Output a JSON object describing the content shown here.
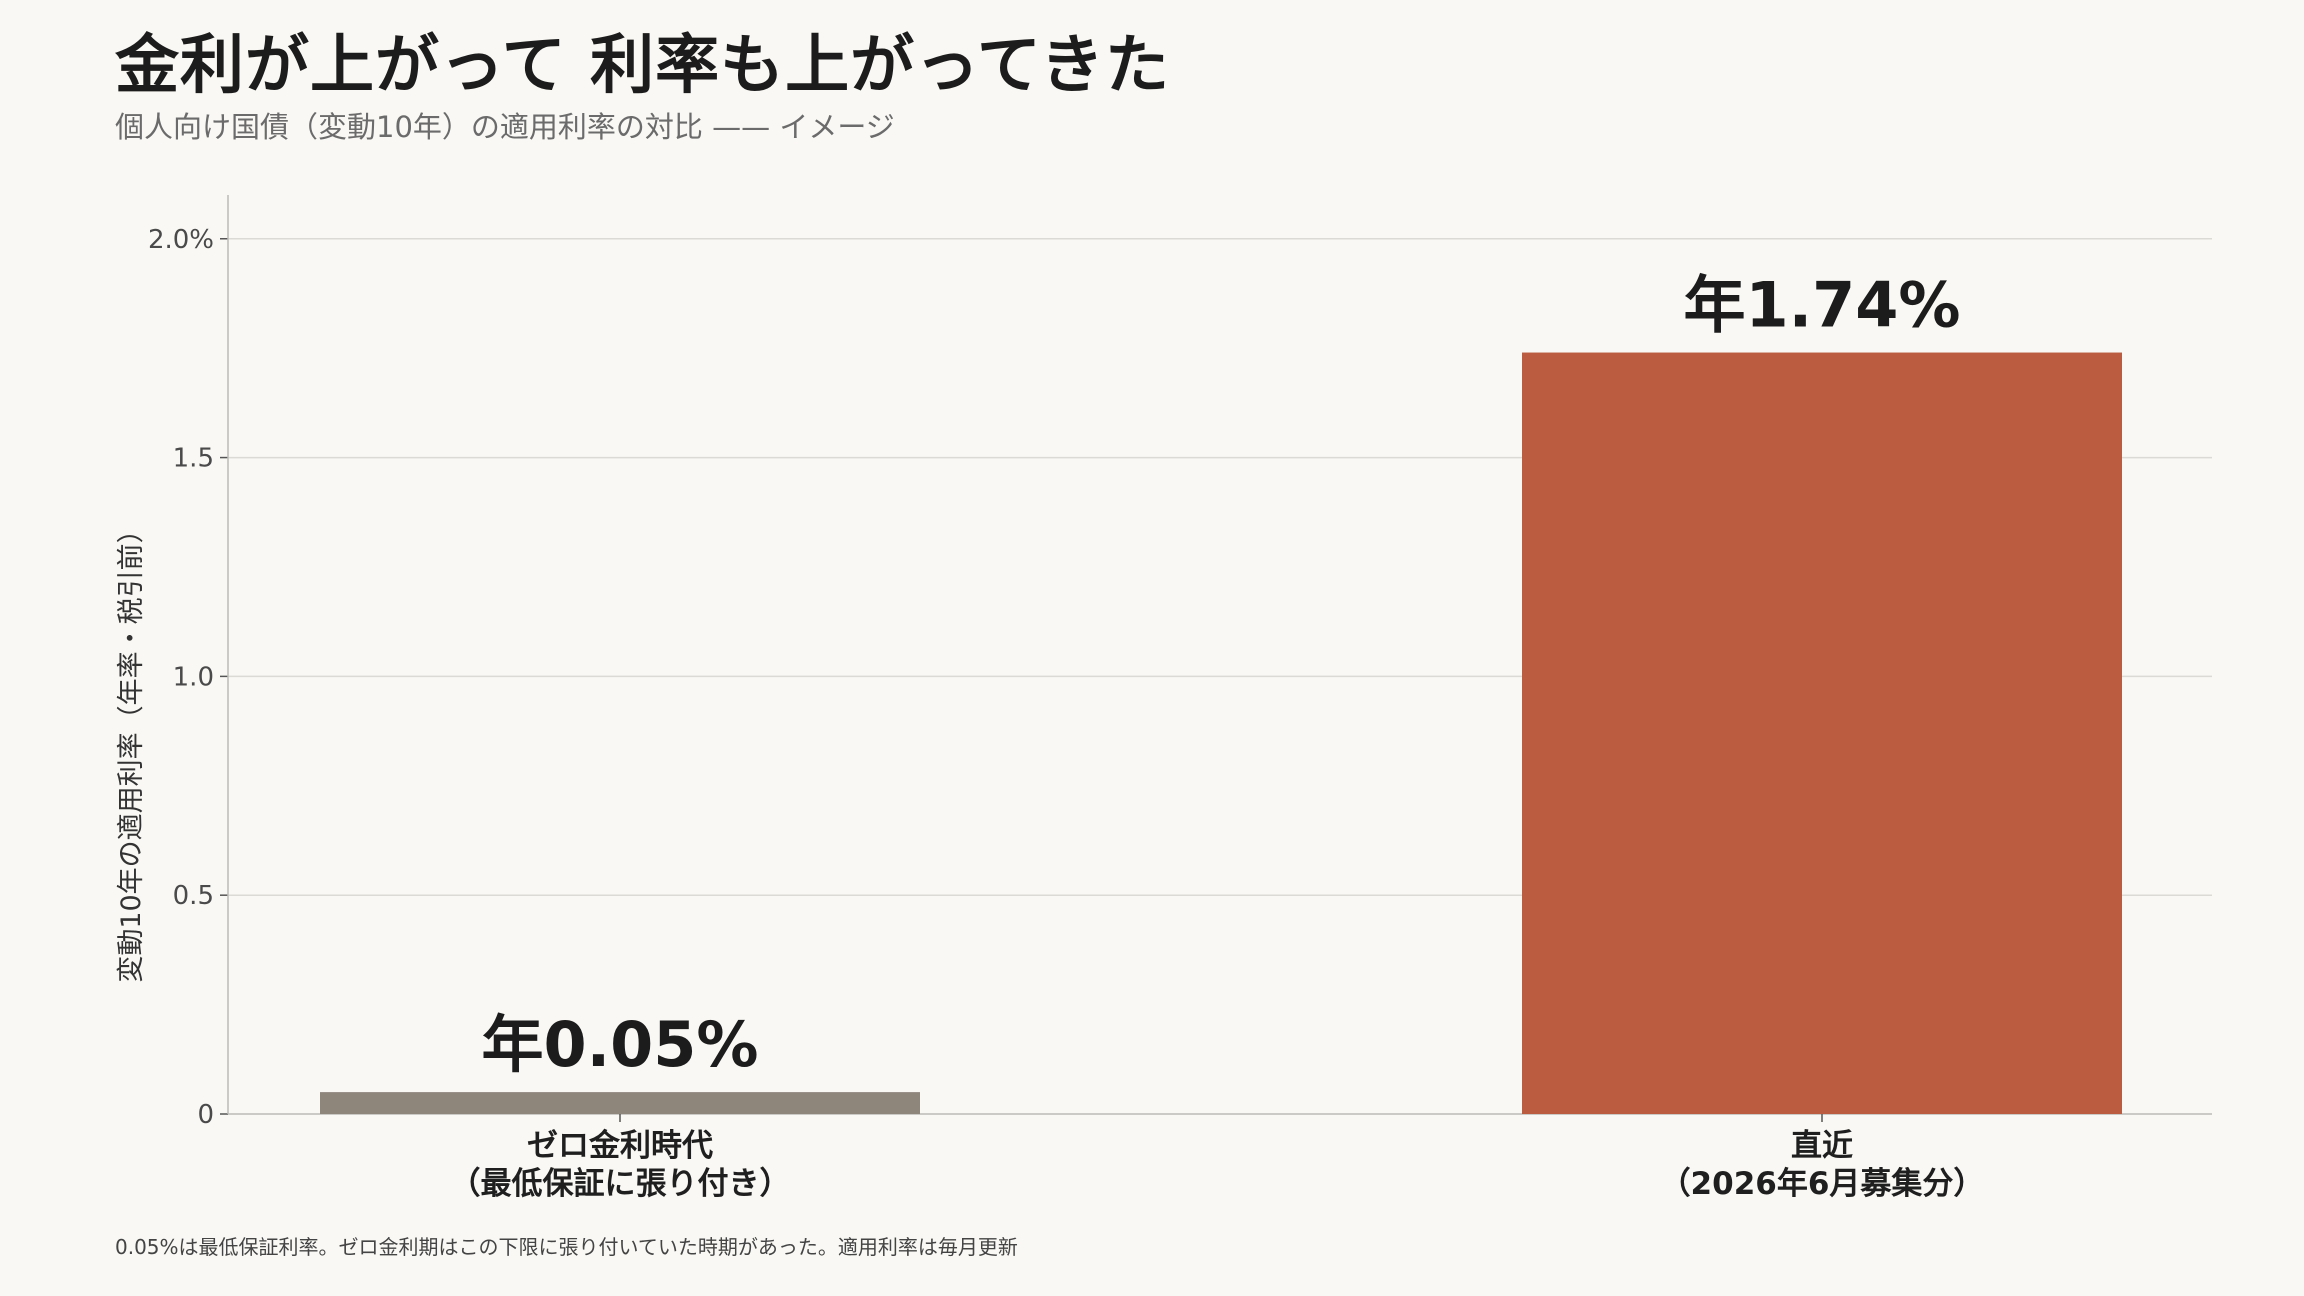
{
  "header": {
    "title": "金利が上がって 利率も上がってきた",
    "subtitle": "個人向け国債（変動10年）の適用利率の対比 —— イメージ"
  },
  "footnote": "0.05%は最低保証利率。ゼロ金利期はこの下限に張り付いていた時期があった。適用利率は毎月更新",
  "chart_data": {
    "type": "bar",
    "ylabel": "変動10年の適用利率（年率・税引前）",
    "ylim": [
      0,
      2.1
    ],
    "yticks": [
      0,
      0.5,
      1.0,
      1.5,
      2.0
    ],
    "ytick_labels": [
      "0",
      "0.5",
      "1.0",
      "1.5",
      "2.0%"
    ],
    "grid": true,
    "categories": [
      [
        "ゼロ金利時代",
        "（最低保証に張り付き）"
      ],
      [
        "直近",
        "（2026年6月募集分）"
      ]
    ],
    "values": [
      0.05,
      1.74
    ],
    "value_labels": [
      "年0.05%",
      "年1.74%"
    ],
    "colors": [
      "#8e857b",
      "#bb5c40"
    ]
  }
}
